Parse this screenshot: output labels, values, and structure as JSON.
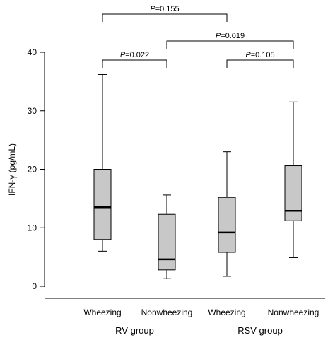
{
  "chart_data": {
    "type": "box",
    "ylabel": "IFN-γ (pg/mL)",
    "ylim": [
      0,
      40
    ],
    "yticks": [
      0,
      10,
      20,
      30,
      40
    ],
    "grid": false,
    "categories": [
      "Wheezing",
      "Nonwheezing",
      "Wheezing",
      "Nonwheezing"
    ],
    "groups": [
      {
        "label": "RV group",
        "categories": [
          0,
          1
        ]
      },
      {
        "label": "RSV group",
        "categories": [
          2,
          3
        ]
      }
    ],
    "box_color": "#c8c8c8",
    "boxes": [
      {
        "category": "Wheezing",
        "group": "RV group",
        "min": 6.0,
        "q1": 8.0,
        "median": 13.5,
        "q3": 20.0,
        "max": 36.2
      },
      {
        "category": "Nonwheezing",
        "group": "RV group",
        "min": 1.3,
        "q1": 2.8,
        "median": 4.6,
        "q3": 12.3,
        "max": 15.6
      },
      {
        "category": "Wheezing",
        "group": "RSV group",
        "min": 1.7,
        "q1": 5.8,
        "median": 9.2,
        "q3": 15.2,
        "max": 23.0
      },
      {
        "category": "Nonwheezing",
        "group": "RSV group",
        "min": 4.9,
        "q1": 11.2,
        "median": 12.9,
        "q3": 20.6,
        "max": 31.5
      }
    ],
    "comparisons": [
      {
        "from": 0,
        "to": 2,
        "p_label": "P",
        "p_value": "=0.155"
      },
      {
        "from": 1,
        "to": 3,
        "p_label": "P",
        "p_value": "=0.019"
      },
      {
        "from": 0,
        "to": 1,
        "p_label": "P",
        "p_value": "=0.022"
      },
      {
        "from": 2,
        "to": 3,
        "p_label": "P",
        "p_value": "=0.105"
      }
    ]
  }
}
